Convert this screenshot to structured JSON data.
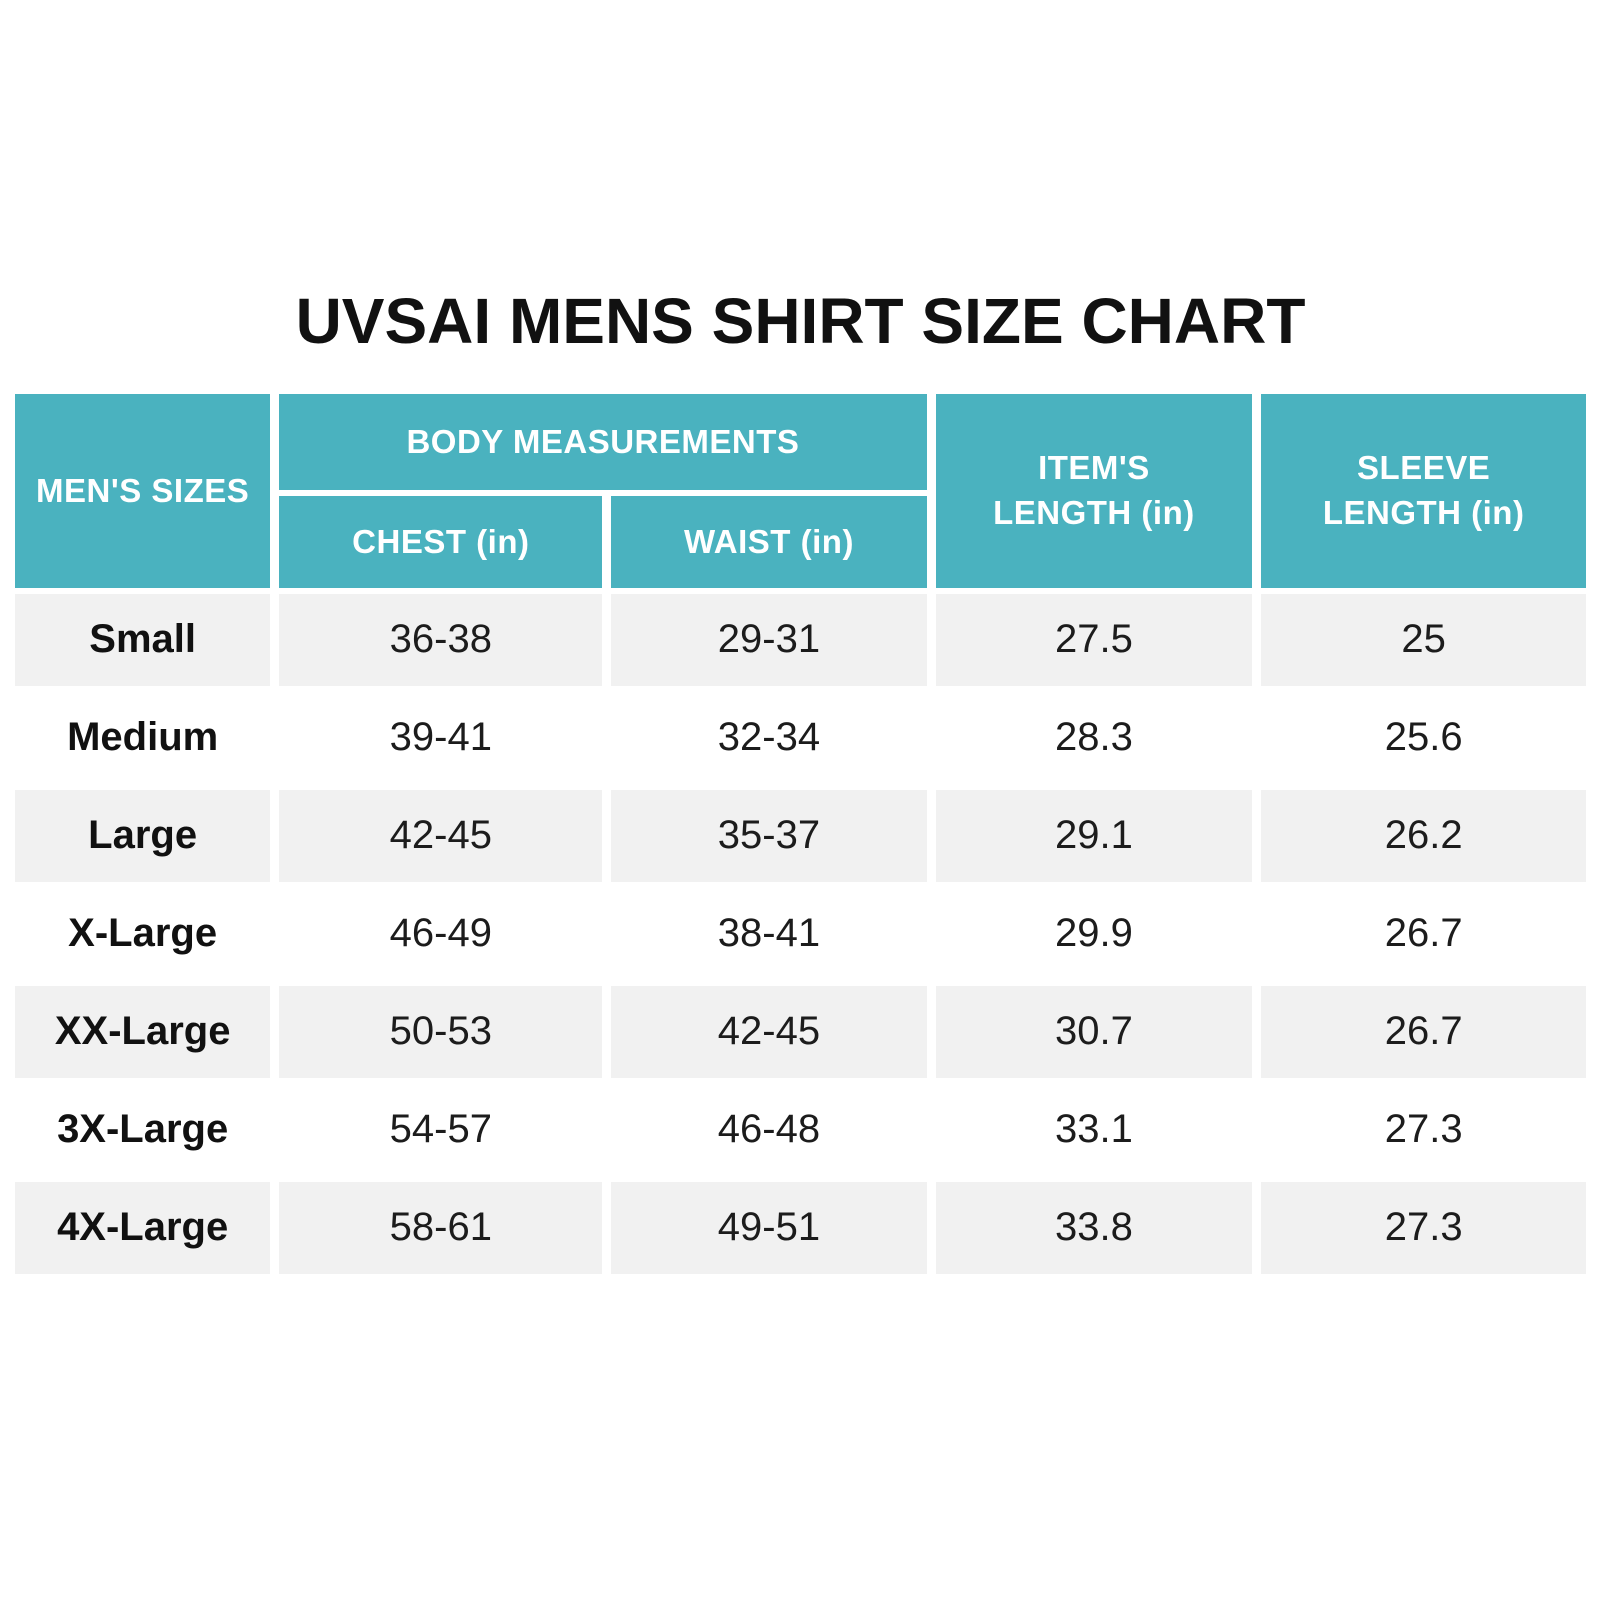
{
  "title": "UVSAI MENS SHIRT SIZE CHART",
  "colors": {
    "header_teal": "#4ab2bf",
    "header_text": "#ffffff",
    "row_shade_gray": "#f1f1f1",
    "row_plain_white": "#ffffff",
    "body_text": "#1c1c1c",
    "title_text": "#111111",
    "background": "#ffffff"
  },
  "table": {
    "header": {
      "mens_sizes": "MEN'S SIZES",
      "body_measurements": "BODY MEASUREMENTS",
      "chest": "CHEST (in)",
      "waist": "WAIST (in)",
      "items_length_line1": "ITEM'S",
      "items_length_line2": "LENGTH (in)",
      "sleeve_length_line1": "SLEEVE",
      "sleeve_length_line2": "LENGTH (in)"
    },
    "rows": [
      {
        "size": "Small",
        "chest": "36-38",
        "waist": "29-31",
        "length": "27.5",
        "sleeve": "25"
      },
      {
        "size": "Medium",
        "chest": "39-41",
        "waist": "32-34",
        "length": "28.3",
        "sleeve": "25.6"
      },
      {
        "size": "Large",
        "chest": "42-45",
        "waist": "35-37",
        "length": "29.1",
        "sleeve": "26.2"
      },
      {
        "size": "X-Large",
        "chest": "46-49",
        "waist": "38-41",
        "length": "29.9",
        "sleeve": "26.7"
      },
      {
        "size": "XX-Large",
        "chest": "50-53",
        "waist": "42-45",
        "length": "30.7",
        "sleeve": "26.7"
      },
      {
        "size": "3X-Large",
        "chest": "54-57",
        "waist": "46-48",
        "length": "33.1",
        "sleeve": "27.3"
      },
      {
        "size": "4X-Large",
        "chest": "58-61",
        "waist": "49-51",
        "length": "33.8",
        "sleeve": "27.3"
      }
    ]
  },
  "chart_data": {
    "type": "table",
    "title": "UVSAI MENS SHIRT SIZE CHART",
    "column_groups": [
      {
        "label": "BODY MEASUREMENTS",
        "columns": [
          "CHEST (in)",
          "WAIST (in)"
        ]
      }
    ],
    "columns": [
      "MEN'S SIZES",
      "CHEST (in)",
      "WAIST (in)",
      "ITEM'S LENGTH (in)",
      "SLEEVE LENGTH (in)"
    ],
    "rows": [
      [
        "Small",
        "36-38",
        "29-31",
        "27.5",
        "25"
      ],
      [
        "Medium",
        "39-41",
        "32-34",
        "28.3",
        "25.6"
      ],
      [
        "Large",
        "42-45",
        "35-37",
        "29.1",
        "26.2"
      ],
      [
        "X-Large",
        "46-49",
        "38-41",
        "29.9",
        "26.7"
      ],
      [
        "XX-Large",
        "50-53",
        "42-45",
        "30.7",
        "26.7"
      ],
      [
        "3X-Large",
        "54-57",
        "46-48",
        "33.1",
        "27.3"
      ],
      [
        "4X-Large",
        "58-61",
        "49-51",
        "33.8",
        "27.3"
      ]
    ]
  }
}
